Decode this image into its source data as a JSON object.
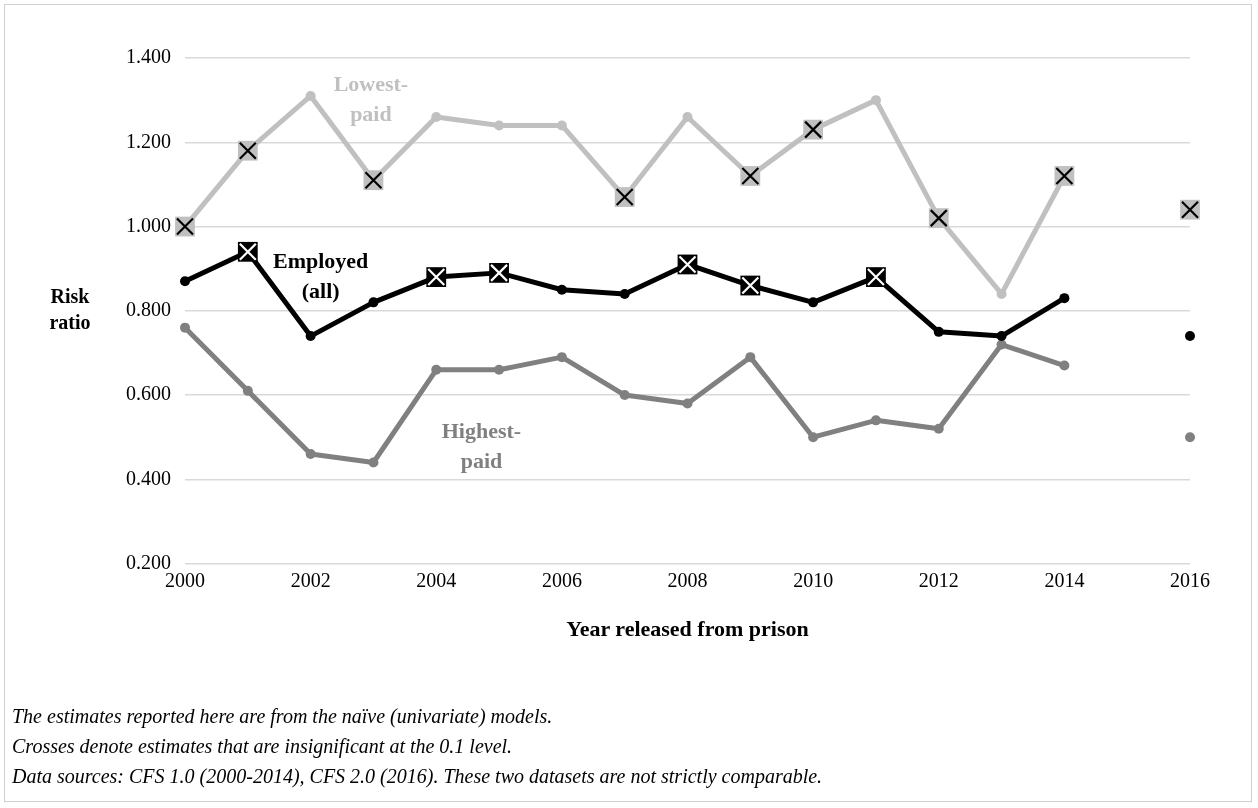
{
  "chart_data": {
    "type": "line",
    "xlabel": "Year released from prison",
    "ylabel": "Risk ratio",
    "x": [
      2000,
      2001,
      2002,
      2003,
      2004,
      2005,
      2006,
      2007,
      2008,
      2009,
      2010,
      2011,
      2012,
      2013,
      2014,
      2015,
      2016
    ],
    "xlim": [
      2000,
      2016
    ],
    "xticks": [
      2000,
      2002,
      2004,
      2006,
      2008,
      2010,
      2012,
      2014,
      2016
    ],
    "ylim": [
      0.2,
      1.4
    ],
    "yticks": [
      {
        "value": 0.2,
        "label": "0.200"
      },
      {
        "value": 0.4,
        "label": "0.400"
      },
      {
        "value": 0.6,
        "label": "0.600"
      },
      {
        "value": 0.8,
        "label": "0.800"
      },
      {
        "value": 1.0,
        "label": "1.000"
      },
      {
        "value": 1.2,
        "label": "1.200"
      },
      {
        "value": 1.4,
        "label": "1.400"
      }
    ],
    "grid": "y",
    "legend": false,
    "marker": "circle",
    "line_style": "solid",
    "series": [
      {
        "name": "Lowest-paid",
        "color": "#c0c0c0",
        "x": [
          2000,
          2001,
          2002,
          2003,
          2004,
          2005,
          2006,
          2007,
          2008,
          2009,
          2010,
          2011,
          2012,
          2013,
          2014
        ],
        "values": [
          1.0,
          1.18,
          1.31,
          1.11,
          1.26,
          1.24,
          1.24,
          1.07,
          1.26,
          1.12,
          1.23,
          1.3,
          1.02,
          0.84,
          1.12
        ]
      },
      {
        "name": "Employed (all)",
        "color": "#000000",
        "x": [
          2000,
          2001,
          2002,
          2003,
          2004,
          2005,
          2006,
          2007,
          2008,
          2009,
          2010,
          2011,
          2012,
          2013,
          2014
        ],
        "values": [
          0.87,
          0.94,
          0.74,
          0.82,
          0.88,
          0.89,
          0.85,
          0.84,
          0.91,
          0.86,
          0.82,
          0.88,
          0.75,
          0.74,
          0.83
        ]
      },
      {
        "name": "Highest-paid",
        "color": "#808080",
        "x": [
          2000,
          2001,
          2002,
          2003,
          2004,
          2005,
          2006,
          2007,
          2008,
          2009,
          2010,
          2011,
          2012,
          2013,
          2014
        ],
        "values": [
          0.76,
          0.61,
          0.46,
          0.44,
          0.66,
          0.66,
          0.69,
          0.6,
          0.58,
          0.69,
          0.5,
          0.54,
          0.52,
          0.72,
          0.67
        ]
      },
      {
        "type": "scatter",
        "marker": "circle",
        "color": "#000000",
        "x": [
          2016
        ],
        "values": [
          0.74
        ]
      },
      {
        "type": "scatter",
        "marker": "circle",
        "color": "#808080",
        "x": [
          2016
        ],
        "values": [
          0.5
        ]
      },
      {
        "type": "scatter",
        "marker": "square",
        "color": "#c0c0c0",
        "values": [
          1.0,
          1.18,
          null,
          1.11,
          null,
          null,
          null,
          1.07,
          null,
          1.12,
          1.23,
          null,
          1.02,
          null,
          1.12,
          null,
          1.04
        ]
      },
      {
        "type": "scatter",
        "marker": "square",
        "color": "#000000",
        "values": [
          null,
          0.94,
          null,
          null,
          0.88,
          0.89,
          null,
          null,
          0.91,
          0.86,
          null,
          0.88,
          null,
          null,
          null,
          null,
          null
        ]
      }
    ],
    "annotations": [
      "The estimates reported here are from the naïve (univariate) models.",
      "Crosses denote estimates that are insignificant at the 0.1 level.",
      "Data sources: CFS 1.0 (2000-2014), CFS 2.0 (2016). These two datasets are not strictly comparable."
    ]
  }
}
